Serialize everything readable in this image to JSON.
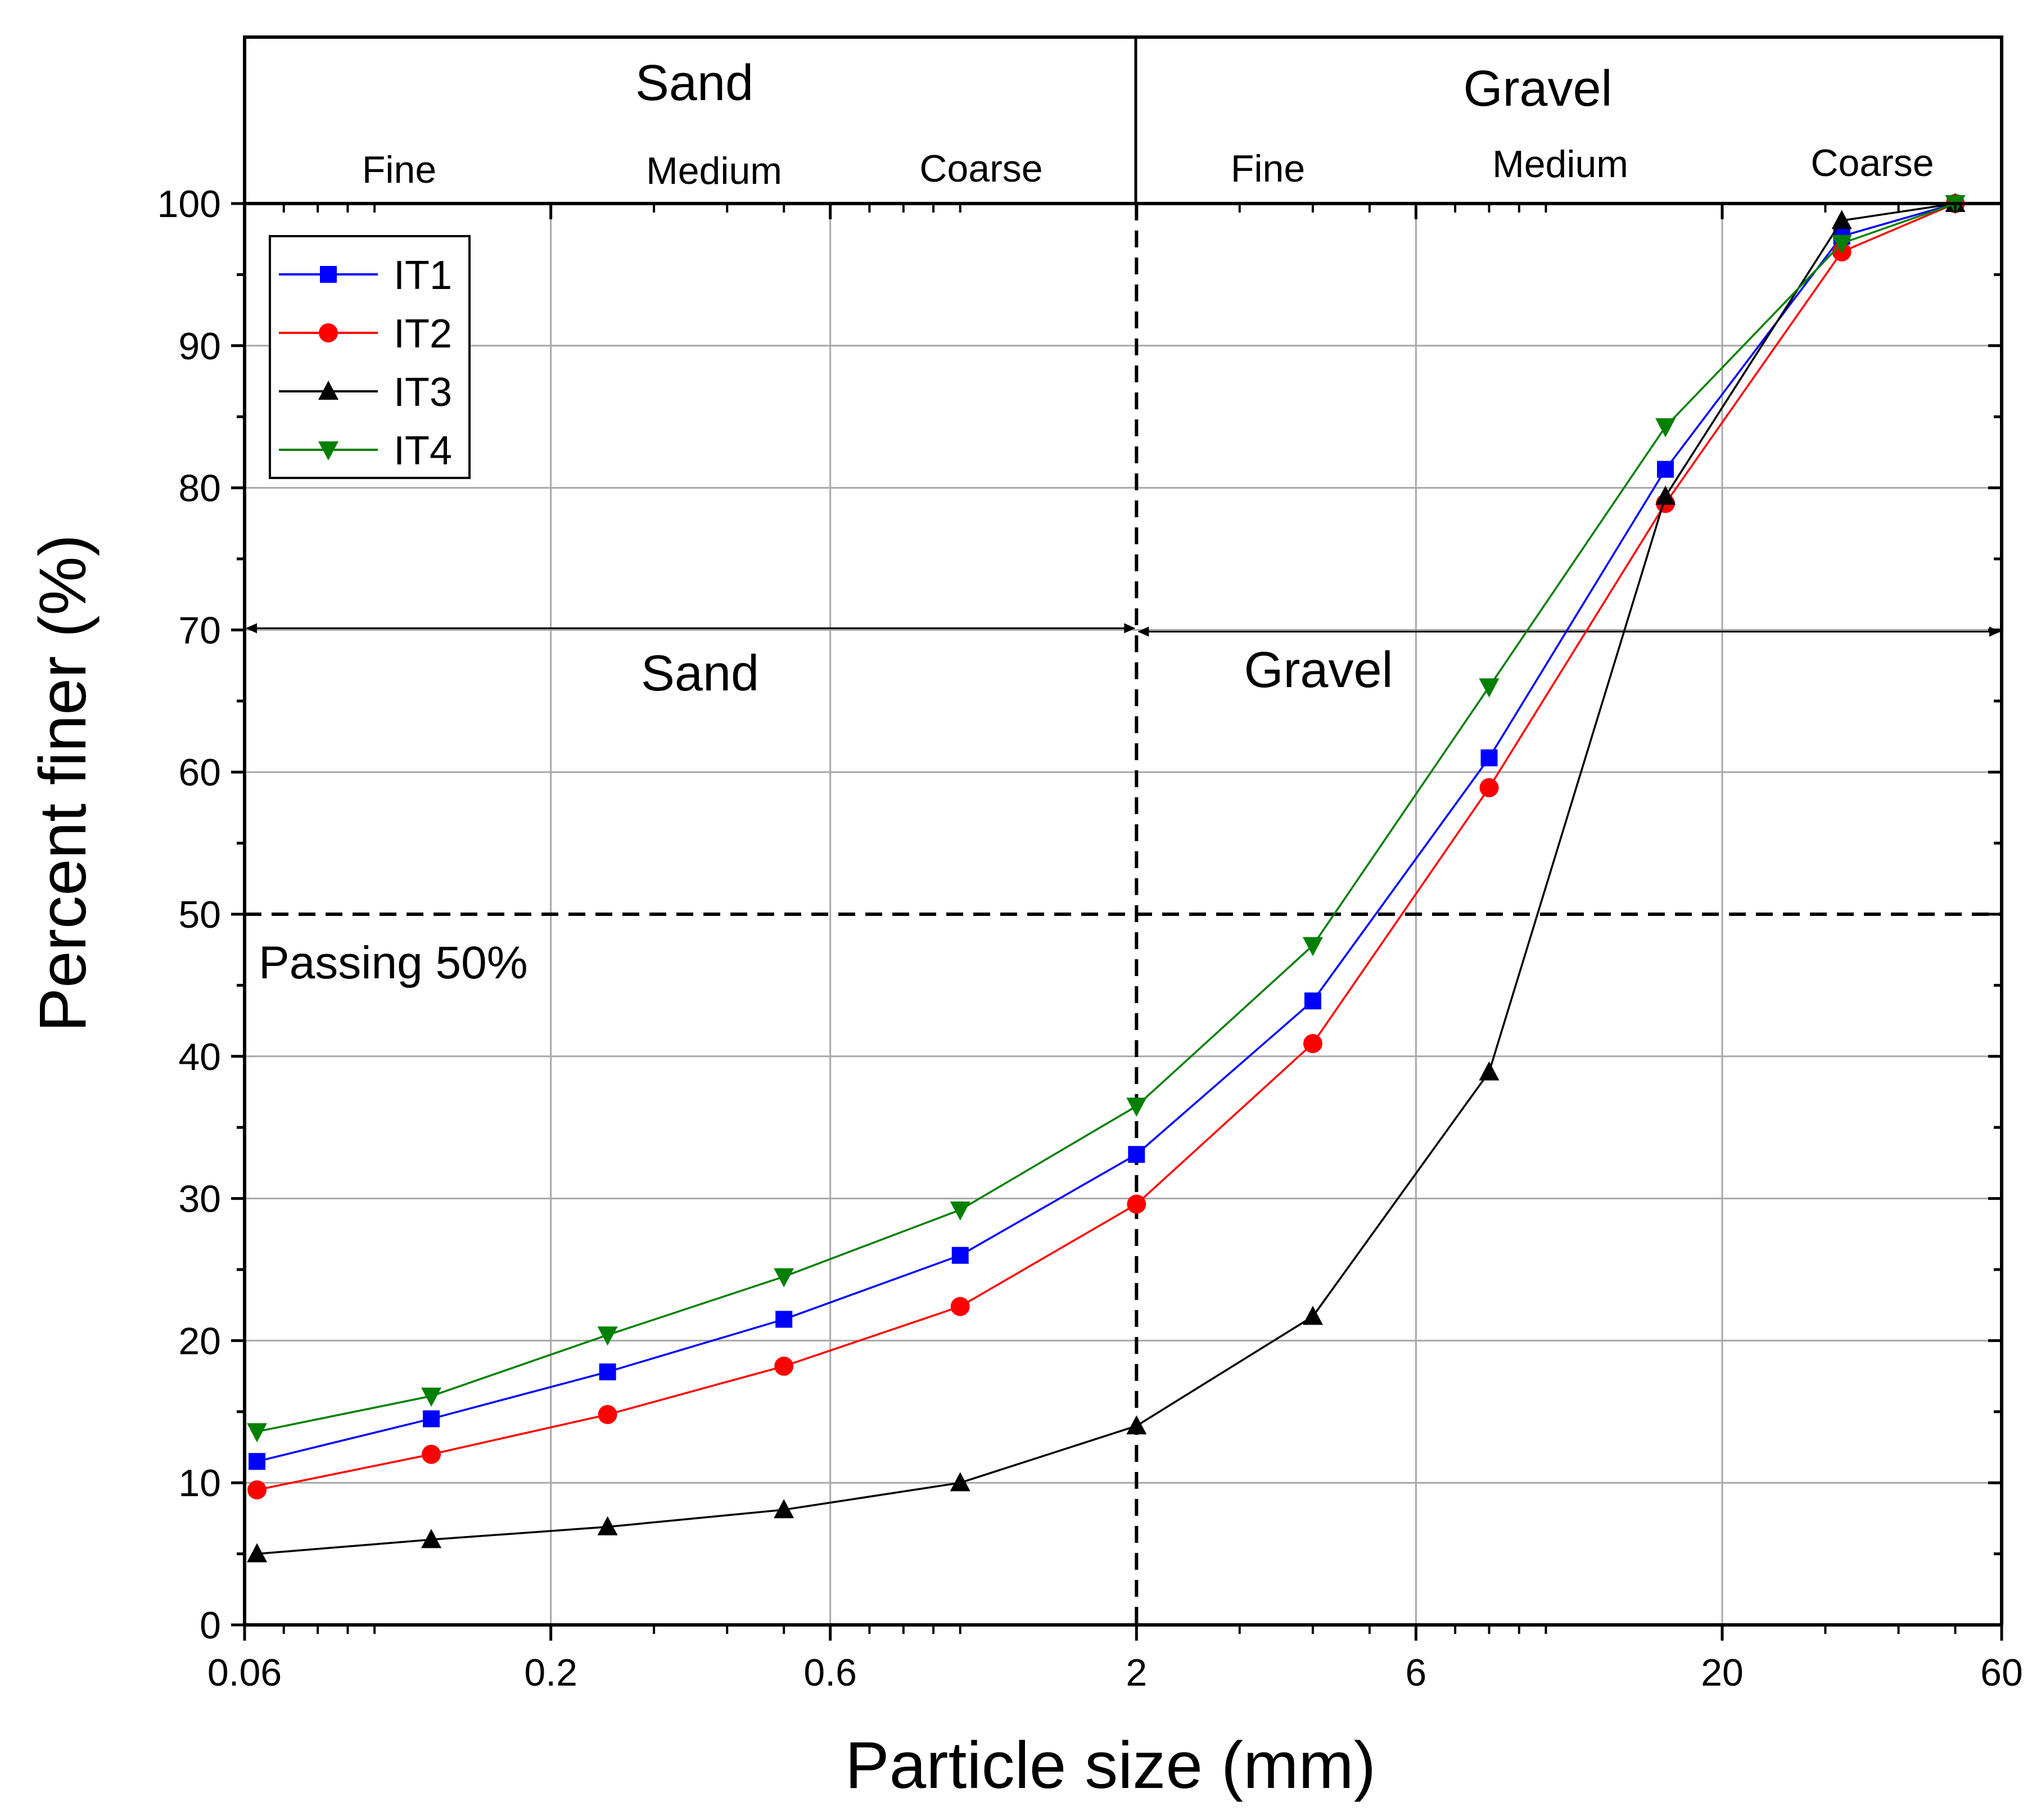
{
  "chart_data": {
    "type": "line",
    "x_scale": "log",
    "xlabel": "Particle size (mm)",
    "ylabel": "Percent finer (%)",
    "xlim": [
      0.06,
      60
    ],
    "ylim": [
      0,
      100
    ],
    "x_ticks": [
      {
        "value": 0.06,
        "label": "0.06"
      },
      {
        "value": 0.2,
        "label": "0.2"
      },
      {
        "value": 0.6,
        "label": "0.6"
      },
      {
        "value": 2,
        "label": "2"
      },
      {
        "value": 6,
        "label": "6"
      },
      {
        "value": 20,
        "label": "20"
      },
      {
        "value": 60,
        "label": "60"
      }
    ],
    "y_ticks": [
      {
        "value": 0,
        "label": "0"
      },
      {
        "value": 10,
        "label": "10"
      },
      {
        "value": 20,
        "label": "20"
      },
      {
        "value": 30,
        "label": "30"
      },
      {
        "value": 40,
        "label": "40"
      },
      {
        "value": 50,
        "label": "50"
      },
      {
        "value": 60,
        "label": "60"
      },
      {
        "value": 70,
        "label": "70"
      },
      {
        "value": 80,
        "label": "80"
      },
      {
        "value": 90,
        "label": "90"
      },
      {
        "value": 100,
        "label": "100"
      }
    ],
    "grid": true,
    "legend_position": "top-left",
    "x": [
      0.063,
      0.125,
      0.25,
      0.5,
      1,
      2,
      4,
      8,
      16,
      32,
      50
    ],
    "series": [
      {
        "name": "IT1",
        "color": "#0000ff",
        "marker": "square",
        "values": [
          11.5,
          14.5,
          17.8,
          21.5,
          26.0,
          33.1,
          43.9,
          61.0,
          81.3,
          97.7,
          100
        ]
      },
      {
        "name": "IT2",
        "color": "#ff0000",
        "marker": "circle",
        "values": [
          9.5,
          12.0,
          14.8,
          18.2,
          22.4,
          29.6,
          40.9,
          58.9,
          78.9,
          96.6,
          100
        ]
      },
      {
        "name": "IT3",
        "color": "#000000",
        "marker": "triangle-up",
        "values": [
          5.0,
          6.0,
          6.9,
          8.1,
          10.0,
          14.0,
          21.7,
          38.9,
          79.4,
          98.8,
          100
        ]
      },
      {
        "name": "IT4",
        "color": "#008000",
        "marker": "triangle-down",
        "values": [
          13.6,
          16.1,
          20.4,
          24.5,
          29.2,
          36.5,
          47.8,
          66.0,
          84.3,
          97.2,
          100
        ]
      }
    ],
    "reference_lines": [
      {
        "type": "horizontal",
        "y": 50,
        "style": "dashed"
      },
      {
        "type": "vertical",
        "x": 2,
        "style": "dashed"
      },
      {
        "type": "horizontal-arrows",
        "y": 70,
        "from": 0.06,
        "to": 60,
        "split": 2
      }
    ],
    "annotations": {
      "passing": "Passing 50%",
      "mid_sand": "Sand",
      "mid_gravel": "Gravel"
    },
    "classification_header": {
      "sand": {
        "title": "Sand",
        "fine": "Fine",
        "medium": "Medium",
        "coarse": "Coarse"
      },
      "gravel": {
        "title": "Gravel",
        "fine": "Fine",
        "medium": "Medium",
        "coarse": "Coarse"
      }
    }
  }
}
